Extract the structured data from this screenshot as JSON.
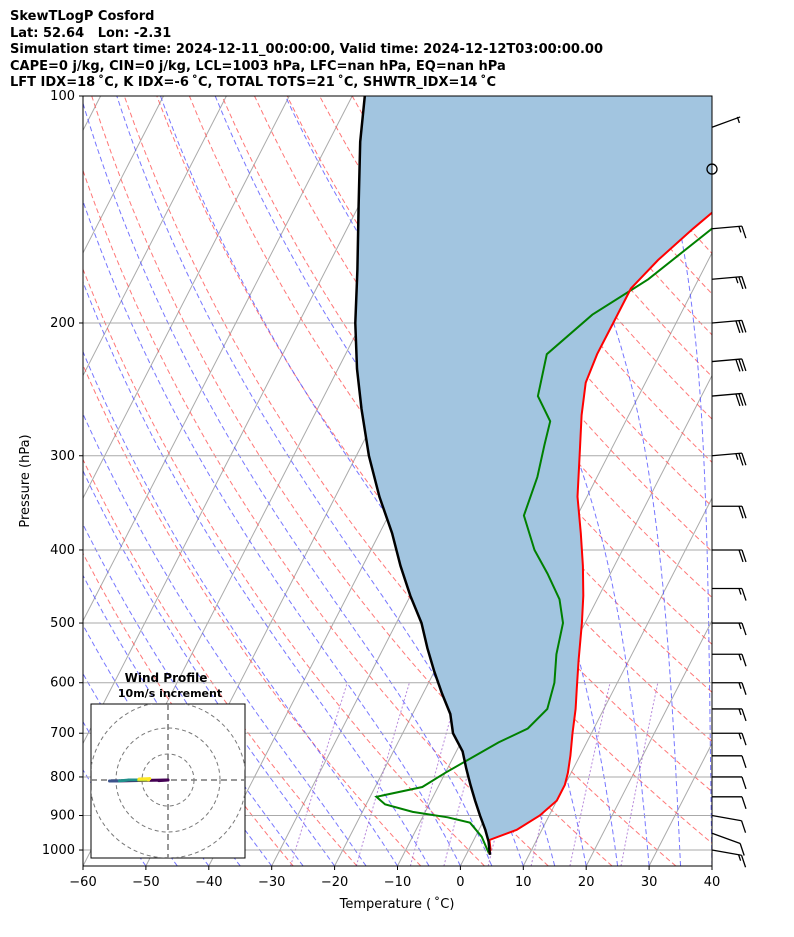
{
  "header": {
    "line1": "SkewTLogP Cosford",
    "line2": "Lat: 52.64   Lon: -2.31",
    "line3": "Simulation start time: 2024-12-11_00:00:00, Valid time: 2024-12-12T03:00:00.00",
    "line4": "CAPE=0 j/kg, CIN=0 j/kg, LCL=1003 hPa, LFC=nan hPa, EQ=nan hPa",
    "line5": "LFT IDX=18 ˚C, K IDX=-6 ˚C, TOTAL TOTS=21 ˚C, SHWTR_IDX=14 ˚C"
  },
  "chart_data": {
    "type": "line",
    "title": "SkewTLogP Cosford",
    "xlabel": "Temperature ( ˚C)",
    "ylabel": "Pressure (hPa)",
    "xlim": [
      -60,
      40
    ],
    "ylim": [
      1050,
      100
    ],
    "y_scale": "log",
    "x_ticks": [
      "−60",
      "−50",
      "−40",
      "−30",
      "−20",
      "−10",
      "0",
      "10",
      "20",
      "30",
      "40"
    ],
    "y_ticks": [
      "1000",
      "900",
      "800",
      "700",
      "600",
      "500",
      "400",
      "300",
      "200",
      "100"
    ],
    "grid": true,
    "colors": {
      "temperature": "#ff0000",
      "dewpoint": "#008000",
      "parcel": "#000000",
      "cape_fill": "#a2c5e0",
      "dry_adiabat": "#ff5555",
      "moist_adiabat": "#5555ff",
      "mixing_ratio": "#9955cc",
      "isotherm": "#aaaaaa"
    },
    "series": [
      {
        "name": "temperature",
        "points": [
          [
            3.5,
            1010
          ],
          [
            3.5,
            1000
          ],
          [
            2.5,
            970
          ],
          [
            6,
            940
          ],
          [
            8.5,
            900
          ],
          [
            10,
            860
          ],
          [
            10,
            820
          ],
          [
            9.5,
            790
          ],
          [
            8.5,
            750
          ],
          [
            7,
            700
          ],
          [
            5.5,
            650
          ],
          [
            4,
            610
          ],
          [
            2,
            560
          ],
          [
            -0.5,
            500
          ],
          [
            -2.5,
            460
          ],
          [
            -5,
            420
          ],
          [
            -8,
            380
          ],
          [
            -11.5,
            340
          ],
          [
            -14.5,
            300
          ],
          [
            -17.5,
            265
          ],
          [
            -19.5,
            240
          ],
          [
            -20,
            220
          ],
          [
            -20,
            200
          ],
          [
            -20,
            180
          ],
          [
            -18,
            165
          ],
          [
            -15,
            150
          ],
          [
            -10,
            130
          ],
          [
            -5,
            110
          ],
          [
            -2,
            100
          ]
        ]
      },
      {
        "name": "dewpoint",
        "points": [
          [
            3.5,
            1010
          ],
          [
            2.5,
            990
          ],
          [
            1,
            960
          ],
          [
            -2,
            920
          ],
          [
            -6,
            905
          ],
          [
            -12,
            890
          ],
          [
            -17,
            870
          ],
          [
            -19,
            850
          ],
          [
            -12.5,
            825
          ],
          [
            -10,
            790
          ],
          [
            -4,
            720
          ],
          [
            -0.5,
            690
          ],
          [
            1,
            650
          ],
          [
            0,
            600
          ],
          [
            -2,
            550
          ],
          [
            -3.5,
            500
          ],
          [
            -6,
            465
          ],
          [
            -10,
            430
          ],
          [
            -14,
            400
          ],
          [
            -18.5,
            360
          ],
          [
            -19.5,
            320
          ],
          [
            -21,
            290
          ],
          [
            -22,
            270
          ],
          [
            -26,
            250
          ],
          [
            -28,
            220
          ],
          [
            -24,
            195
          ],
          [
            -18,
            175
          ],
          [
            -12,
            150
          ],
          [
            -10,
            130
          ],
          [
            -8,
            110
          ],
          [
            -6,
            100
          ]
        ]
      },
      {
        "name": "parcel",
        "points": [
          [
            3.8,
            1015
          ],
          [
            3.3,
            1000
          ],
          [
            2.5,
            975
          ],
          [
            1,
            940
          ],
          [
            -1,
            900
          ],
          [
            -3,
            860
          ],
          [
            -5,
            820
          ],
          [
            -7,
            780
          ],
          [
            -9,
            740
          ],
          [
            -12,
            700
          ],
          [
            -14,
            660
          ],
          [
            -17,
            620
          ],
          [
            -20,
            580
          ],
          [
            -23,
            540
          ],
          [
            -26,
            500
          ],
          [
            -30,
            460
          ],
          [
            -34,
            420
          ],
          [
            -38,
            380
          ],
          [
            -43,
            340
          ],
          [
            -48,
            300
          ],
          [
            -53,
            260
          ],
          [
            -57,
            230
          ],
          [
            -61,
            200
          ],
          [
            -65,
            170
          ],
          [
            -70,
            140
          ],
          [
            -75,
            115
          ],
          [
            -78,
            100
          ]
        ]
      }
    ],
    "wind_barbs": [
      {
        "p": 1000,
        "speed": 15,
        "dir": 260
      },
      {
        "p": 950,
        "speed": 10,
        "dir": 250
      },
      {
        "p": 900,
        "speed": 10,
        "dir": 260
      },
      {
        "p": 850,
        "speed": 10,
        "dir": 270
      },
      {
        "p": 800,
        "speed": 10,
        "dir": 270
      },
      {
        "p": 750,
        "speed": 10,
        "dir": 270
      },
      {
        "p": 700,
        "speed": 15,
        "dir": 270
      },
      {
        "p": 650,
        "speed": 15,
        "dir": 270
      },
      {
        "p": 600,
        "speed": 15,
        "dir": 270
      },
      {
        "p": 550,
        "speed": 15,
        "dir": 270
      },
      {
        "p": 500,
        "speed": 15,
        "dir": 270
      },
      {
        "p": 450,
        "speed": 15,
        "dir": 270
      },
      {
        "p": 400,
        "speed": 20,
        "dir": 270
      },
      {
        "p": 350,
        "speed": 20,
        "dir": 270
      },
      {
        "p": 300,
        "speed": 25,
        "dir": 275
      },
      {
        "p": 250,
        "speed": 30,
        "dir": 275
      },
      {
        "p": 225,
        "speed": 30,
        "dir": 275
      },
      {
        "p": 200,
        "speed": 30,
        "dir": 275
      },
      {
        "p": 175,
        "speed": 25,
        "dir": 275
      },
      {
        "p": 150,
        "speed": 15,
        "dir": 275
      },
      {
        "p": 125,
        "speed": 0,
        "dir": 0
      },
      {
        "p": 110,
        "speed": 5,
        "dir": 290
      }
    ],
    "hodograph": {
      "title": "Wind Profile",
      "subtitle": "10m/s increment",
      "rings": [
        10,
        20,
        30
      ]
    }
  }
}
